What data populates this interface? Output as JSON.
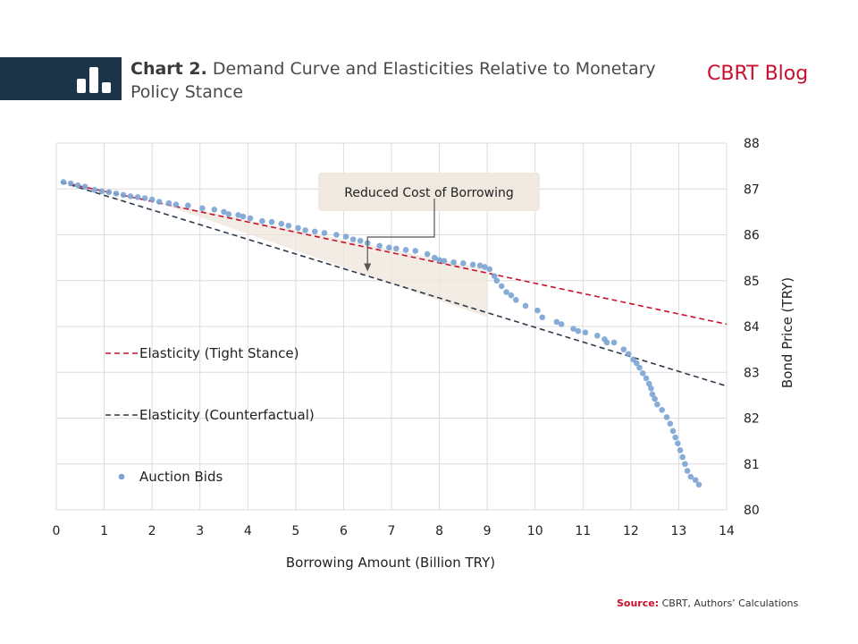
{
  "header": {
    "chart_number": "Chart 2.",
    "chart_title": "Demand Curve and Elasticities Relative to Monetary Policy Stance",
    "blog_name": "CBRT Blog",
    "icon": "bar-chart-icon",
    "brand_color": "#1d3348",
    "accent_color": "#c8102e"
  },
  "source": {
    "label": "Source:",
    "text": "CBRT, Authors’ Calculations"
  },
  "chart_data": {
    "type": "scatter",
    "title": "",
    "xlabel": "Borrowing Amount (Billion TRY)",
    "ylabel": "Bond Price (TRY)",
    "xlim": [
      0,
      14
    ],
    "ylim": [
      80,
      88
    ],
    "x_ticks": [
      "0",
      "1",
      "2",
      "3",
      "4",
      "5",
      "6",
      "7",
      "8",
      "9",
      "10",
      "11",
      "12",
      "13",
      "14"
    ],
    "y_ticks": [
      "80",
      "81",
      "82",
      "83",
      "84",
      "85",
      "86",
      "87",
      "88"
    ],
    "grid": true,
    "legend_position": "left",
    "annotation": {
      "text": "Reduced Cost of Borrowing",
      "arrow_to": [
        6.5,
        85.2
      ],
      "shaded_region": [
        [
          2.0,
          86.75
        ],
        [
          9.0,
          85.25
        ],
        [
          9.0,
          84.2
        ]
      ]
    },
    "series": [
      {
        "name": "Elasticity (Tight Stance)",
        "kind": "line",
        "style": "dashed",
        "color": "#c8102e",
        "x": [
          0.1,
          14
        ],
        "y": [
          87.15,
          84.05
        ]
      },
      {
        "name": "Elasticity (Counterfactual)",
        "kind": "line",
        "style": "dashed",
        "color": "#2e3a4c",
        "x": [
          0.1,
          14
        ],
        "y": [
          87.15,
          82.7
        ]
      },
      {
        "name": "Auction Bids",
        "kind": "scatter",
        "color": "#7ba3d4",
        "points": [
          [
            0.15,
            87.15
          ],
          [
            0.3,
            87.12
          ],
          [
            0.45,
            87.08
          ],
          [
            0.6,
            87.05
          ],
          [
            0.8,
            86.98
          ],
          [
            0.95,
            86.95
          ],
          [
            1.1,
            86.93
          ],
          [
            1.25,
            86.9
          ],
          [
            1.4,
            86.87
          ],
          [
            1.55,
            86.84
          ],
          [
            1.7,
            86.82
          ],
          [
            1.85,
            86.8
          ],
          [
            2.0,
            86.77
          ],
          [
            2.15,
            86.72
          ],
          [
            2.35,
            86.69
          ],
          [
            2.5,
            86.66
          ],
          [
            2.75,
            86.64
          ],
          [
            3.05,
            86.58
          ],
          [
            3.3,
            86.55
          ],
          [
            3.5,
            86.5
          ],
          [
            3.6,
            86.45
          ],
          [
            3.8,
            86.43
          ],
          [
            3.9,
            86.4
          ],
          [
            4.05,
            86.36
          ],
          [
            4.3,
            86.3
          ],
          [
            4.5,
            86.28
          ],
          [
            4.7,
            86.24
          ],
          [
            4.85,
            86.2
          ],
          [
            5.05,
            86.15
          ],
          [
            5.2,
            86.1
          ],
          [
            5.4,
            86.07
          ],
          [
            5.6,
            86.04
          ],
          [
            5.85,
            86.0
          ],
          [
            6.05,
            85.96
          ],
          [
            6.2,
            85.9
          ],
          [
            6.35,
            85.87
          ],
          [
            6.5,
            85.82
          ],
          [
            6.75,
            85.76
          ],
          [
            6.95,
            85.72
          ],
          [
            7.1,
            85.7
          ],
          [
            7.3,
            85.67
          ],
          [
            7.5,
            85.65
          ],
          [
            7.75,
            85.58
          ],
          [
            7.9,
            85.5
          ],
          [
            8.0,
            85.45
          ],
          [
            8.1,
            85.43
          ],
          [
            8.3,
            85.4
          ],
          [
            8.5,
            85.38
          ],
          [
            8.7,
            85.35
          ],
          [
            8.85,
            85.33
          ],
          [
            8.95,
            85.3
          ],
          [
            9.05,
            85.25
          ],
          [
            9.15,
            85.1
          ],
          [
            9.2,
            85.0
          ],
          [
            9.3,
            84.88
          ],
          [
            9.4,
            84.75
          ],
          [
            9.5,
            84.68
          ],
          [
            9.6,
            84.58
          ],
          [
            9.8,
            84.45
          ],
          [
            10.05,
            84.35
          ],
          [
            10.15,
            84.2
          ],
          [
            10.45,
            84.1
          ],
          [
            10.55,
            84.05
          ],
          [
            10.8,
            83.95
          ],
          [
            10.9,
            83.9
          ],
          [
            11.05,
            83.87
          ],
          [
            11.3,
            83.8
          ],
          [
            11.45,
            83.72
          ],
          [
            11.5,
            83.65
          ],
          [
            11.65,
            83.65
          ],
          [
            11.85,
            83.5
          ],
          [
            11.95,
            83.4
          ],
          [
            12.05,
            83.28
          ],
          [
            12.12,
            83.2
          ],
          [
            12.18,
            83.1
          ],
          [
            12.25,
            82.98
          ],
          [
            12.32,
            82.87
          ],
          [
            12.38,
            82.75
          ],
          [
            12.42,
            82.65
          ],
          [
            12.45,
            82.52
          ],
          [
            12.5,
            82.42
          ],
          [
            12.55,
            82.3
          ],
          [
            12.65,
            82.18
          ],
          [
            12.75,
            82.02
          ],
          [
            12.82,
            81.88
          ],
          [
            12.88,
            81.72
          ],
          [
            12.93,
            81.58
          ],
          [
            12.98,
            81.45
          ],
          [
            13.03,
            81.3
          ],
          [
            13.08,
            81.15
          ],
          [
            13.13,
            81.0
          ],
          [
            13.18,
            80.85
          ],
          [
            13.25,
            80.72
          ],
          [
            13.35,
            80.65
          ],
          [
            13.42,
            80.55
          ]
        ]
      }
    ]
  }
}
